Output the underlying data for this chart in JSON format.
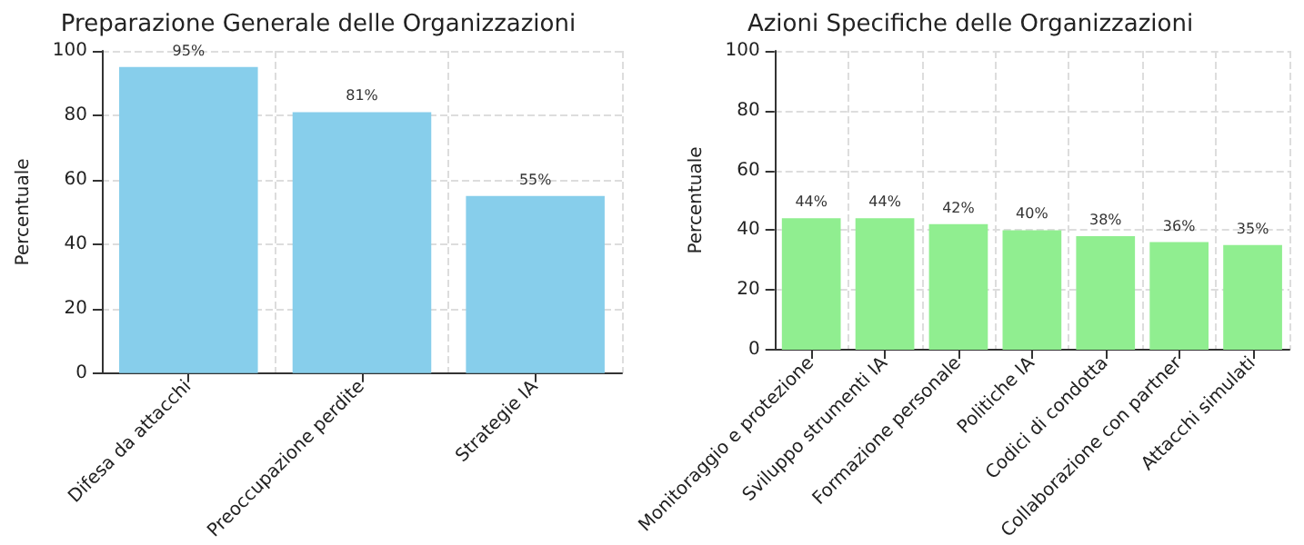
{
  "chart_data": [
    {
      "type": "bar",
      "title": "Preparazione Generale delle Organizzazioni",
      "ylabel": "Percentuale",
      "categories": [
        "Difesa da attacchi",
        "Preoccupazione perdite",
        "Strategie IA"
      ],
      "values": [
        95,
        81,
        55
      ],
      "color": "#87ceeb",
      "value_labels": [
        "95%",
        "81%",
        "55%"
      ],
      "ylim": [
        0,
        100
      ],
      "yticks": [
        0,
        20,
        40,
        60,
        80,
        100
      ],
      "grid": true
    },
    {
      "type": "bar",
      "title": "Azioni Specifiche delle Organizzazioni",
      "ylabel": "Percentuale",
      "categories": [
        "Monitoraggio e protezione",
        "Sviluppo strumenti IA",
        "Formazione personale",
        "Politiche IA",
        "Codici di condotta",
        "Collaborazione con partner",
        "Attacchi simulati"
      ],
      "values": [
        44,
        44,
        42,
        40,
        38,
        36,
        35
      ],
      "color": "#90ee90",
      "value_labels": [
        "44%",
        "44%",
        "42%",
        "40%",
        "38%",
        "36%",
        "35%"
      ],
      "ylim": [
        0,
        100
      ],
      "yticks": [
        0,
        20,
        40,
        60,
        80,
        100
      ],
      "grid": true
    }
  ]
}
